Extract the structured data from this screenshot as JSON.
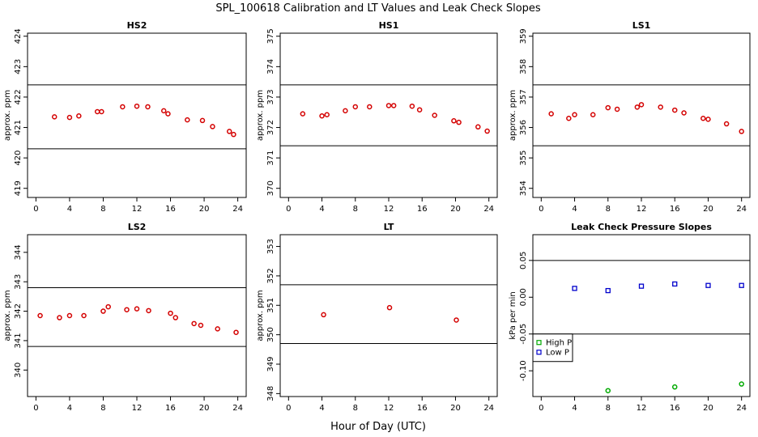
{
  "figure": {
    "title": "SPL_100618  Calibration and LT Values and Leak Check Slopes",
    "xlabel": "Hour of Day (UTC)"
  },
  "chart_data": [
    {
      "type": "scatter",
      "title": "HS2",
      "ylabel": "approx. ppm",
      "xlim": [
        -1,
        25
      ],
      "xticks": [
        0,
        4,
        8,
        12,
        16,
        20,
        24
      ],
      "ylim": [
        418.7,
        424.1
      ],
      "yticks": [
        419,
        420,
        421,
        422,
        423,
        424
      ],
      "hlines": [
        422.4,
        420.3
      ],
      "series": [
        {
          "color": "#d40000",
          "marker": "circle",
          "x": [
            2.2,
            4.0,
            5.1,
            7.3,
            7.8,
            10.3,
            12.0,
            13.3,
            15.2,
            15.7,
            18.0,
            19.8,
            21.0,
            23.0,
            23.5
          ],
          "y": [
            421.35,
            421.33,
            421.38,
            421.52,
            421.52,
            421.68,
            421.7,
            421.68,
            421.55,
            421.45,
            421.25,
            421.23,
            421.03,
            420.87,
            420.77
          ]
        }
      ]
    },
    {
      "type": "scatter",
      "title": "HS1",
      "ylabel": "approx. ppm",
      "xlim": [
        -1,
        25
      ],
      "xticks": [
        0,
        4,
        8,
        12,
        16,
        20,
        24
      ],
      "ylim": [
        369.7,
        375.1
      ],
      "yticks": [
        370,
        371,
        372,
        373,
        374,
        375
      ],
      "hlines": [
        373.4,
        371.4
      ],
      "series": [
        {
          "color": "#d40000",
          "marker": "circle",
          "x": [
            1.7,
            4.0,
            4.6,
            6.8,
            8.0,
            9.7,
            12.0,
            12.6,
            14.8,
            15.7,
            17.5,
            19.8,
            20.4,
            22.7,
            23.8
          ],
          "y": [
            372.45,
            372.38,
            372.42,
            372.55,
            372.68,
            372.68,
            372.72,
            372.72,
            372.7,
            372.58,
            372.4,
            372.22,
            372.17,
            372.02,
            371.88
          ]
        }
      ]
    },
    {
      "type": "scatter",
      "title": "LS1",
      "ylabel": "approx. ppm",
      "xlim": [
        -1,
        25
      ],
      "xticks": [
        0,
        4,
        8,
        12,
        16,
        20,
        24
      ],
      "ylim": [
        353.7,
        359.1
      ],
      "yticks": [
        354,
        355,
        356,
        357,
        358,
        359
      ],
      "hlines": [
        357.4,
        355.4
      ],
      "series": [
        {
          "color": "#d40000",
          "marker": "circle",
          "x": [
            1.2,
            3.3,
            4.0,
            6.2,
            8.0,
            9.1,
            11.5,
            12.0,
            14.3,
            16.0,
            17.1,
            19.4,
            20.0,
            22.2,
            24.0
          ],
          "y": [
            356.45,
            356.3,
            356.42,
            356.42,
            356.65,
            356.6,
            356.67,
            356.75,
            356.67,
            356.57,
            356.48,
            356.3,
            356.27,
            356.12,
            355.87
          ]
        }
      ]
    },
    {
      "type": "scatter",
      "title": "LS2",
      "ylabel": "approx. ppm",
      "xlim": [
        -1,
        25
      ],
      "xticks": [
        0,
        4,
        8,
        12,
        16,
        20,
        24
      ],
      "ylim": [
        339.1,
        344.6
      ],
      "yticks": [
        340,
        341,
        342,
        343,
        344
      ],
      "hlines": [
        342.8,
        340.8
      ],
      "series": [
        {
          "color": "#d40000",
          "marker": "circle",
          "x": [
            0.5,
            2.8,
            4.0,
            5.7,
            8.0,
            8.6,
            10.8,
            12.0,
            13.4,
            16.0,
            16.6,
            18.8,
            19.6,
            21.6,
            23.8
          ],
          "y": [
            341.85,
            341.78,
            341.85,
            341.85,
            342.0,
            342.15,
            342.05,
            342.08,
            342.02,
            341.93,
            341.78,
            341.58,
            341.52,
            341.4,
            341.28
          ]
        }
      ]
    },
    {
      "type": "scatter",
      "title": "LT",
      "ylabel": "approx. ppm",
      "xlim": [
        -1,
        25
      ],
      "xticks": [
        0,
        4,
        8,
        12,
        16,
        20,
        24
      ],
      "ylim": [
        347.9,
        353.4
      ],
      "yticks": [
        348,
        349,
        350,
        351,
        352,
        353
      ],
      "hlines": [
        351.7,
        349.7
      ],
      "series": [
        {
          "color": "#d40000",
          "marker": "circle",
          "x": [
            4.2,
            12.1,
            20.1
          ],
          "y": [
            350.68,
            350.92,
            350.5
          ]
        }
      ]
    },
    {
      "type": "scatter",
      "title": "Leak Check Pressure Slopes",
      "ylabel": "kPa per min",
      "xlim": [
        -1,
        25
      ],
      "xticks": [
        0,
        4,
        8,
        12,
        16,
        20,
        24
      ],
      "ylim": [
        -0.135,
        0.085
      ],
      "yticks": [
        -0.1,
        -0.05,
        0.0,
        0.05
      ],
      "ytick_labels": [
        "-0.10",
        "-0.05",
        "0.00",
        "0.05"
      ],
      "hlines": [
        0.05,
        -0.05
      ],
      "legend": {
        "position": "lower-left",
        "entries": [
          "High P",
          "Low P"
        ]
      },
      "series": [
        {
          "name": "High P",
          "color": "#00aa00",
          "marker": "circle",
          "x": [
            8.0,
            16.0,
            24.0
          ],
          "y": [
            -0.127,
            -0.122,
            -0.118
          ]
        },
        {
          "name": "Low P",
          "color": "#0000cc",
          "marker": "square",
          "x": [
            4.0,
            8.0,
            12.0,
            16.0,
            20.0,
            24.0
          ],
          "y": [
            0.012,
            0.009,
            0.015,
            0.018,
            0.016,
            0.016
          ]
        }
      ]
    }
  ]
}
